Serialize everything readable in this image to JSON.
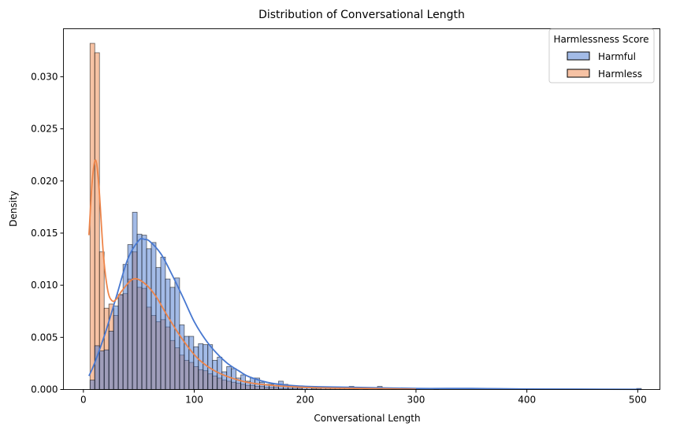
{
  "chart_data": {
    "type": "histogram",
    "title": "Distribution of Conversational Length",
    "xlabel": "Conversational Length",
    "ylabel": "Density",
    "xlim": [
      -18,
      520
    ],
    "ylim": [
      0,
      0.0346
    ],
    "xticks": [
      0,
      100,
      200,
      300,
      400,
      500
    ],
    "xtick_labels": [
      "0",
      "100",
      "200",
      "300",
      "400",
      "500"
    ],
    "yticks": [
      0,
      0.005,
      0.01,
      0.015,
      0.02,
      0.025,
      0.03
    ],
    "ytick_labels": [
      "0.000",
      "0.005",
      "0.010",
      "0.015",
      "0.020",
      "0.025",
      "0.030"
    ],
    "grid": false,
    "bin_start": 6,
    "bin_width": 4.25,
    "legend": {
      "title": "Harmlessness Score",
      "placement": "top-right"
    },
    "series": [
      {
        "name": "Harmful",
        "color": "#4878d0",
        "values": [
          0.0009,
          0.0042,
          0.0037,
          0.0038,
          0.0056,
          0.008,
          0.0091,
          0.012,
          0.0139,
          0.017,
          0.0149,
          0.0148,
          0.0135,
          0.0141,
          0.0117,
          0.0127,
          0.0106,
          0.0098,
          0.0107,
          0.0062,
          0.0051,
          0.0051,
          0.0041,
          0.0044,
          0.0043,
          0.0043,
          0.0028,
          0.0031,
          0.0017,
          0.0022,
          0.002,
          0.0011,
          0.0014,
          0.0008,
          0.0011,
          0.0011,
          0.0007,
          0.0005,
          0.0005,
          0.0004,
          0.0008,
          0.0005,
          0.0003,
          0.0003,
          0.0002,
          0.0002,
          0.0002,
          0.0001,
          0.0001,
          0.0002,
          0.0001,
          0.0001,
          0.0001,
          0.0001,
          0.0001,
          0.0003,
          0.0001,
          0,
          0.0001,
          0,
          0,
          0.0003,
          0,
          0,
          0.0001,
          0,
          0,
          0,
          0,
          0.0001,
          0,
          0,
          0,
          0.0001,
          0,
          0,
          0,
          0,
          0,
          0,
          0,
          0,
          0,
          0,
          0,
          0,
          0,
          0,
          0,
          0,
          0,
          0,
          0,
          0,
          0,
          0,
          0,
          0,
          0,
          0,
          0,
          0,
          0,
          0,
          0,
          0,
          0,
          0,
          0,
          0,
          0,
          0,
          0,
          0,
          0,
          0,
          0.0001
        ],
        "kde": [
          [
            5,
            0.0013
          ],
          [
            10,
            0.0025
          ],
          [
            20,
            0.0055
          ],
          [
            30,
            0.009
          ],
          [
            40,
            0.0125
          ],
          [
            50,
            0.0143
          ],
          [
            55,
            0.0144
          ],
          [
            60,
            0.0142
          ],
          [
            70,
            0.013
          ],
          [
            80,
            0.011
          ],
          [
            90,
            0.0088
          ],
          [
            100,
            0.0065
          ],
          [
            110,
            0.0048
          ],
          [
            120,
            0.0035
          ],
          [
            130,
            0.0025
          ],
          [
            140,
            0.0018
          ],
          [
            150,
            0.0012
          ],
          [
            170,
            0.0006
          ],
          [
            200,
            0.0003
          ],
          [
            250,
            0.0002
          ],
          [
            300,
            0.0001
          ],
          [
            350,
            0.0001
          ],
          [
            400,
            5e-05
          ],
          [
            503,
            2e-05
          ]
        ]
      },
      {
        "name": "Harmless",
        "color": "#ee854a",
        "values": [
          0.0332,
          0.0323,
          0.0132,
          0.0078,
          0.0082,
          0.0071,
          0.0091,
          0.0092,
          0.0106,
          0.0132,
          0.0098,
          0.0097,
          0.0079,
          0.0071,
          0.0065,
          0.0067,
          0.006,
          0.0047,
          0.004,
          0.0033,
          0.0028,
          0.0026,
          0.0022,
          0.0019,
          0.0018,
          0.0015,
          0.0013,
          0.0011,
          0.0009,
          0.0008,
          0.0007,
          0.0006,
          0.0005,
          0.0004,
          0.0004,
          0.0003,
          0.0003,
          0.0002,
          0.0002,
          0.0002,
          0.0001,
          0.0001,
          0.0001,
          0.0001,
          0.0001
        ],
        "kde": [
          [
            5,
            0.0148
          ],
          [
            8,
            0.02
          ],
          [
            11,
            0.022
          ],
          [
            14,
            0.0195
          ],
          [
            18,
            0.013
          ],
          [
            22,
            0.0095
          ],
          [
            26,
            0.0085
          ],
          [
            30,
            0.0087
          ],
          [
            35,
            0.0095
          ],
          [
            45,
            0.0106
          ],
          [
            55,
            0.0102
          ],
          [
            65,
            0.009
          ],
          [
            75,
            0.0072
          ],
          [
            85,
            0.0055
          ],
          [
            95,
            0.004
          ],
          [
            105,
            0.0028
          ],
          [
            120,
            0.0017
          ],
          [
            140,
            0.0009
          ],
          [
            160,
            0.0005
          ],
          [
            200,
            0.0002
          ],
          [
            250,
            0.0001
          ],
          [
            300,
            3e-05
          ]
        ]
      }
    ]
  }
}
